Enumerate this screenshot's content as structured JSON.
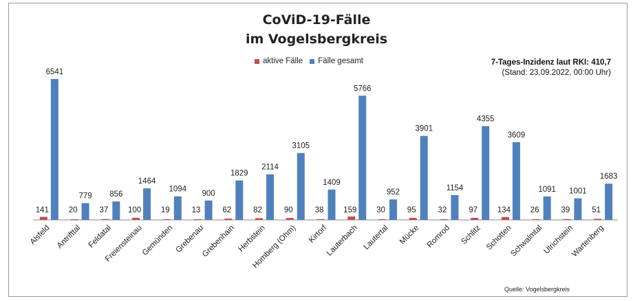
{
  "title_line1": "CoViD-19-Fälle",
  "title_line2": "im Vogelsbergkreis",
  "incidence": "7-Tages-Inzidenz laut RKI: 410,7",
  "stand": "(Stand: 23.09.2022, 00:00 Uhr)",
  "source": "Quelle: Vogelsbergkreis",
  "colors": {
    "active": "#c0504d",
    "total": "#4f81bd"
  },
  "chart_data": {
    "type": "bar",
    "title": "CoViD-19-Fälle im Vogelsbergkreis",
    "categories": [
      "Alsfeld",
      "Antrifttal",
      "Feldatal",
      "Freiensteinau",
      "Gemünden",
      "Grebenau",
      "Grebenhain",
      "Herbstein",
      "Homberg (Ohm)",
      "Kirtorf",
      "Lauterbach",
      "Lautertal",
      "Mücke",
      "Romrod",
      "Schlitz",
      "Schotten",
      "Schwalmtal",
      "Ulrichstein",
      "Wartenberg"
    ],
    "series": [
      {
        "name": "aktive Fälle",
        "values": [
          141,
          20,
          37,
          100,
          19,
          13,
          62,
          82,
          90,
          38,
          159,
          30,
          95,
          32,
          97,
          134,
          26,
          39,
          51
        ]
      },
      {
        "name": "Fälle gesamt",
        "values": [
          6541,
          779,
          856,
          1464,
          1094,
          900,
          1829,
          2114,
          3105,
          1409,
          5766,
          952,
          3901,
          1154,
          4355,
          3609,
          1091,
          1001,
          1683
        ]
      }
    ],
    "ylim": [
      0,
      6700
    ],
    "grid": false,
    "legend_position": "top-center"
  }
}
